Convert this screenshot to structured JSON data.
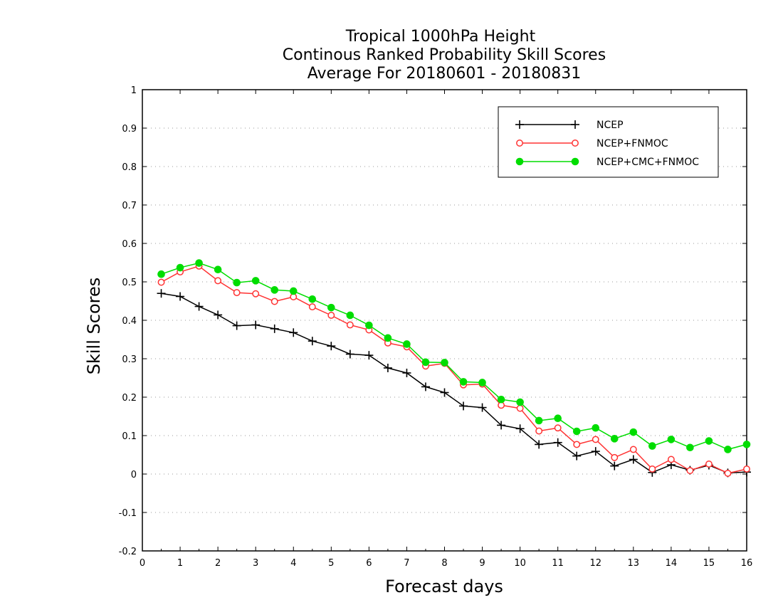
{
  "chart_data": {
    "type": "line",
    "title": [
      "Tropical 1000hPa Height",
      "Continous Ranked Probability Skill Scores",
      "Average For 20180601 - 20180831"
    ],
    "xlabel": "Forecast days",
    "ylabel": "Skill Scores",
    "xlim": [
      0,
      16
    ],
    "ylim": [
      -0.2,
      1
    ],
    "xticks": [
      0,
      1,
      2,
      3,
      4,
      5,
      6,
      7,
      8,
      9,
      10,
      11,
      12,
      13,
      14,
      15,
      16
    ],
    "yticks": [
      -0.2,
      -0.1,
      0,
      0.1,
      0.2,
      0.3,
      0.4,
      0.5,
      0.6,
      0.7,
      0.8,
      0.9,
      1
    ],
    "ytick_labels": [
      "-0.2",
      "-0.1",
      "0",
      "0.1",
      "0.2",
      "0.3",
      "0.4",
      "0.5",
      "0.6",
      "0.7",
      "0.8",
      "0.9",
      "1"
    ],
    "grid": "horizontal dotted",
    "legend_position": "top-right",
    "x": [
      0.5,
      1,
      1.5,
      2,
      2.5,
      3,
      3.5,
      4,
      4.5,
      5,
      5.5,
      6,
      6.5,
      7,
      7.5,
      8,
      8.5,
      9,
      9.5,
      10,
      10.5,
      11,
      11.5,
      12,
      12.5,
      13,
      13.5,
      14,
      14.5,
      15,
      15.5,
      16
    ],
    "series": [
      {
        "name": "NCEP",
        "color": "#000000",
        "marker": "plus",
        "values": [
          0.47,
          0.462,
          0.436,
          0.414,
          0.386,
          0.388,
          0.378,
          0.368,
          0.346,
          0.333,
          0.312,
          0.309,
          0.276,
          0.263,
          0.227,
          0.212,
          0.177,
          0.173,
          0.127,
          0.118,
          0.077,
          0.082,
          0.047,
          0.059,
          0.021,
          0.038,
          0.004,
          0.024,
          0.01,
          0.023,
          0.003,
          0.005
        ]
      },
      {
        "name": "NCEP+FNMOC",
        "color": "#ff3333",
        "marker": "open-circle",
        "values": [
          0.499,
          0.526,
          0.541,
          0.503,
          0.472,
          0.469,
          0.449,
          0.461,
          0.435,
          0.413,
          0.388,
          0.375,
          0.341,
          0.331,
          0.281,
          0.288,
          0.232,
          0.234,
          0.179,
          0.171,
          0.112,
          0.12,
          0.077,
          0.09,
          0.043,
          0.064,
          0.013,
          0.038,
          0.009,
          0.026,
          0.002,
          0.013
        ]
      },
      {
        "name": "NCEP+CMC+FNMOC",
        "color": "#00dd00",
        "marker": "filled-circle",
        "values": [
          0.52,
          0.537,
          0.549,
          0.532,
          0.498,
          0.503,
          0.479,
          0.476,
          0.455,
          0.433,
          0.413,
          0.387,
          0.354,
          0.338,
          0.291,
          0.29,
          0.24,
          0.238,
          0.194,
          0.187,
          0.139,
          0.145,
          0.111,
          0.12,
          0.092,
          0.109,
          0.073,
          0.09,
          0.069,
          0.086,
          0.064,
          0.077
        ]
      }
    ]
  }
}
